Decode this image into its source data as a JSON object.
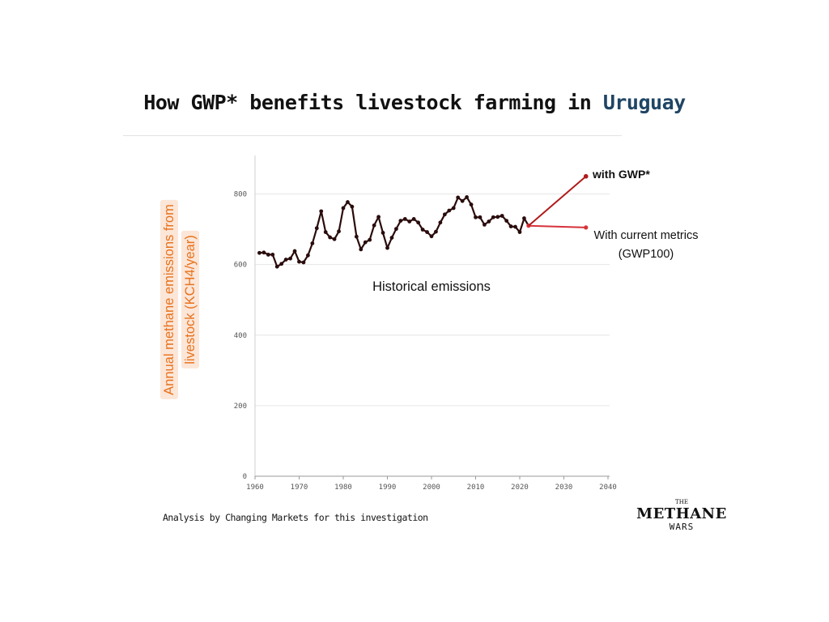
{
  "title": {
    "prefix": "How GWP* benefits livestock farming in ",
    "country": "Uruguay"
  },
  "source_note": "Analysis by Changing Markets for this investigation",
  "logo": {
    "line1": "THE",
    "line2": "METHANE",
    "line3": "WARS"
  },
  "colors": {
    "historical_line": "#2a0c0c",
    "gwp_star": "#b01c1c",
    "gwp100": "#d7323a",
    "ylabel_text": "#e8721d",
    "ylabel_bg": "#fbe6d8",
    "country": "#1f4564"
  },
  "chart_data": {
    "type": "line",
    "ylabel_lines": [
      "Annual methane emissions from",
      "livestock (KCH4/year)"
    ],
    "xlabel": "",
    "xlim": [
      1960,
      2040
    ],
    "ylim": [
      0,
      900
    ],
    "x_ticks": [
      1960,
      1970,
      1980,
      1990,
      2000,
      2010,
      2020,
      2030,
      2040
    ],
    "y_ticks": [
      0,
      200,
      400,
      600,
      800
    ],
    "grid": true,
    "series": [
      {
        "label": "Historical emissions",
        "x": [
          1961,
          1962,
          1963,
          1964,
          1965,
          1966,
          1967,
          1968,
          1969,
          1970,
          1971,
          1972,
          1973,
          1974,
          1975,
          1976,
          1977,
          1978,
          1979,
          1980,
          1981,
          1982,
          1983,
          1984,
          1985,
          1986,
          1987,
          1988,
          1989,
          1990,
          1991,
          1992,
          1993,
          1994,
          1995,
          1996,
          1997,
          1998,
          1999,
          2000,
          2001,
          2002,
          2003,
          2004,
          2005,
          2006,
          2007,
          2008,
          2009,
          2010,
          2011,
          2012,
          2013,
          2014,
          2015,
          2016,
          2017,
          2018,
          2019,
          2020,
          2021,
          2022
        ],
        "y": [
          633,
          634,
          628,
          628,
          594,
          602,
          614,
          617,
          638,
          608,
          606,
          626,
          660,
          703,
          751,
          692,
          677,
          672,
          694,
          760,
          777,
          764,
          679,
          643,
          663,
          670,
          711,
          735,
          690,
          647,
          676,
          701,
          724,
          729,
          722,
          729,
          719,
          699,
          692,
          680,
          693,
          719,
          742,
          753,
          760,
          790,
          780,
          791,
          770,
          734,
          734,
          713,
          722,
          734,
          735,
          738,
          724,
          708,
          707,
          692,
          731,
          710
        ]
      },
      {
        "label": "with GWP*",
        "x": [
          2022,
          2035
        ],
        "y": [
          710,
          850
        ]
      },
      {
        "label": "With current metrics",
        "sublabel": "(GWP100)",
        "x": [
          2022,
          2035
        ],
        "y": [
          710,
          705
        ]
      }
    ]
  }
}
